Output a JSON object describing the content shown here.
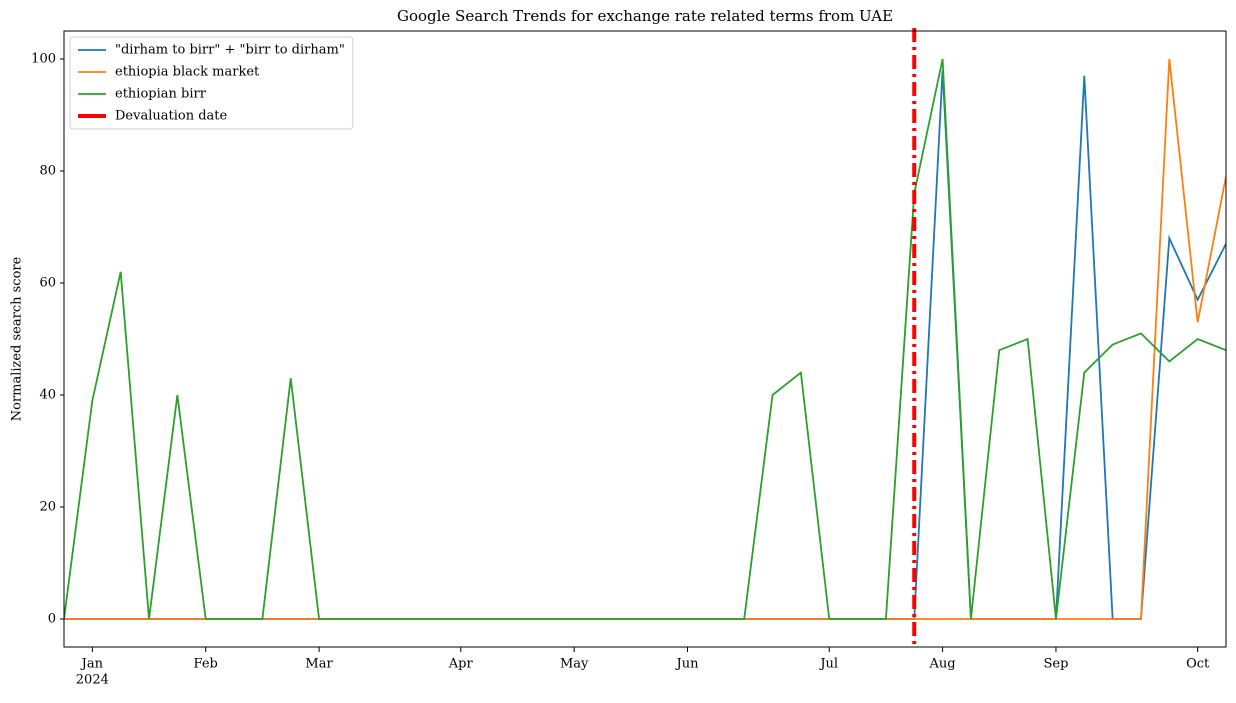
{
  "chart_data": {
    "type": "line",
    "title": "Google Search Trends for exchange rate related terms from UAE",
    "ylabel": "Normalized search score",
    "x": [
      0,
      1,
      2,
      3,
      4,
      5,
      6,
      7,
      8,
      9,
      10,
      11,
      12,
      13,
      14,
      15,
      16,
      17,
      18,
      19,
      20,
      21,
      22,
      23,
      24,
      25,
      26,
      27,
      28,
      29,
      30,
      31,
      32,
      33,
      34,
      35,
      36,
      37,
      38,
      39,
      40,
      41
    ],
    "series": [
      {
        "name": "\"dirham to birr\" + \"birr to dirham\"",
        "color": "#1f77b4",
        "values": [
          0,
          0,
          0,
          0,
          0,
          0,
          0,
          0,
          0,
          0,
          0,
          0,
          0,
          0,
          0,
          0,
          0,
          0,
          0,
          0,
          0,
          0,
          0,
          0,
          0,
          0,
          0,
          0,
          0,
          0,
          0,
          98,
          0,
          0,
          0,
          0,
          97,
          0,
          0,
          68,
          57,
          67
        ]
      },
      {
        "name": "ethiopia black market",
        "color": "#ff7f0e",
        "values": [
          0,
          0,
          0,
          0,
          0,
          0,
          0,
          0,
          0,
          0,
          0,
          0,
          0,
          0,
          0,
          0,
          0,
          0,
          0,
          0,
          0,
          0,
          0,
          0,
          0,
          0,
          0,
          0,
          0,
          0,
          0,
          0,
          0,
          0,
          0,
          0,
          0,
          0,
          0,
          100,
          53,
          79
        ]
      },
      {
        "name": "ethiopian birr",
        "color": "#2ca02c",
        "values": [
          0,
          39,
          62,
          0,
          40,
          0,
          0,
          0,
          43,
          0,
          0,
          0,
          0,
          0,
          0,
          0,
          0,
          0,
          0,
          0,
          0,
          0,
          0,
          0,
          0,
          40,
          44,
          0,
          0,
          0,
          76,
          100,
          0,
          48,
          50,
          0,
          44,
          49,
          51,
          46,
          50,
          48
        ]
      }
    ],
    "vline": {
      "name": "Devaluation date",
      "x": 30,
      "color": "#ff0000"
    },
    "xlim": [
      0,
      41
    ],
    "xticks": [
      {
        "value": 1,
        "label": "Jan"
      },
      {
        "value": 5,
        "label": "Feb"
      },
      {
        "value": 9,
        "label": "Mar"
      },
      {
        "value": 14,
        "label": "Apr"
      },
      {
        "value": 18,
        "label": "May"
      },
      {
        "value": 22,
        "label": "Jun"
      },
      {
        "value": 27,
        "label": "Jul"
      },
      {
        "value": 31,
        "label": "Aug"
      },
      {
        "value": 35,
        "label": "Sep"
      },
      {
        "value": 40,
        "label": "Oct"
      }
    ],
    "year_label": "2024",
    "ylim": [
      -5,
      105
    ],
    "yticks": [
      0,
      20,
      40,
      60,
      80,
      100
    ],
    "legend": "upper left"
  }
}
